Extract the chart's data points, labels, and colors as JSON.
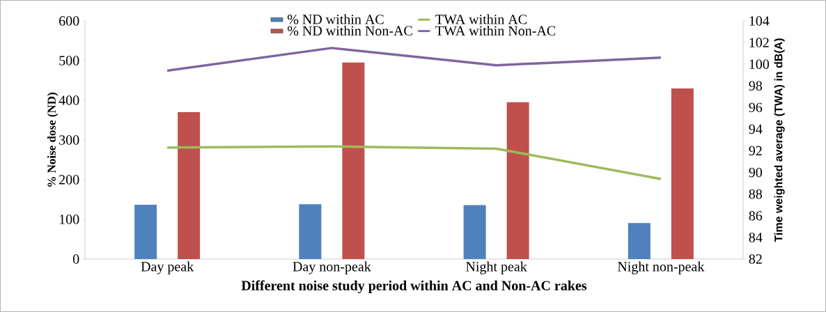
{
  "chart_data": {
    "type": "bar",
    "xlabel": "Different noise study period  within AC and Non-AC rakes",
    "ylabel": "% Noise dose (ND)",
    "y2label": "Time weighted average (TWA) in dB(A)",
    "categories": [
      "Day peak",
      "Day non-peak",
      "Night peak",
      "Night non-peak"
    ],
    "series": [
      {
        "name": "% ND within AC",
        "color": "#4f81bd",
        "values": [
          137,
          138,
          136,
          91
        ]
      },
      {
        "name": "% ND within Non-AC",
        "color": "#c0504d",
        "values": [
          370,
          495,
          395,
          430
        ]
      },
      {
        "name": "TWA within AC",
        "type": "line",
        "axis": "y2",
        "color": "#9bbb59",
        "values": [
          92.3,
          92.4,
          92.2,
          89.4
        ]
      },
      {
        "name": "TWA within Non-AC",
        "type": "line",
        "axis": "y2",
        "color": "#8064a2",
        "values": [
          99.4,
          101.5,
          99.9,
          100.6
        ]
      }
    ],
    "ylim": [
      0,
      600
    ],
    "yticks": [
      0,
      100,
      200,
      300,
      400,
      500,
      600
    ],
    "y2lim": [
      82,
      104
    ],
    "y2ticks": [
      82,
      84,
      86,
      88,
      90,
      92,
      94,
      96,
      98,
      100,
      102,
      104
    ],
    "legend": "top",
    "grid": false,
    "marker": "none",
    "line_style": "solid"
  }
}
